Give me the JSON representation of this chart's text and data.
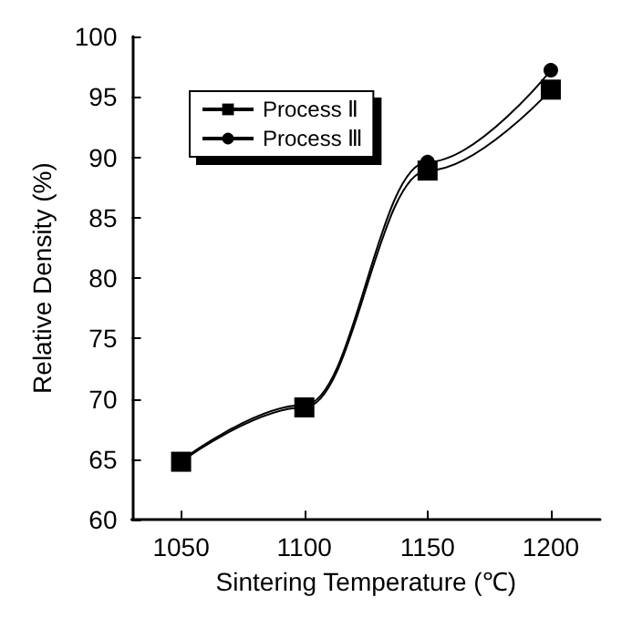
{
  "chart_data": {
    "type": "line",
    "xlabel": "Sintering Temperature (℃)",
    "ylabel": "Relative Density (%)",
    "x": [
      1050,
      1100,
      1150,
      1200
    ],
    "series": [
      {
        "name": "Process Ⅱ",
        "color": "#000000",
        "marker": "square",
        "values": [
          64.8,
          69.3,
          88.9,
          95.6
        ]
      },
      {
        "name": "Process Ⅲ",
        "color": "#000000",
        "marker": "circle",
        "values": [
          64.9,
          69.5,
          89.6,
          97.2
        ]
      }
    ],
    "xlim": [
      1030,
      1220
    ],
    "xticks": [
      1050,
      1100,
      1150,
      1200
    ],
    "ylim": [
      60,
      100
    ],
    "yticks": [
      60,
      65,
      70,
      75,
      80,
      85,
      90,
      95,
      100
    ],
    "grid": false,
    "legend": "top left",
    "line_style": "solid"
  }
}
